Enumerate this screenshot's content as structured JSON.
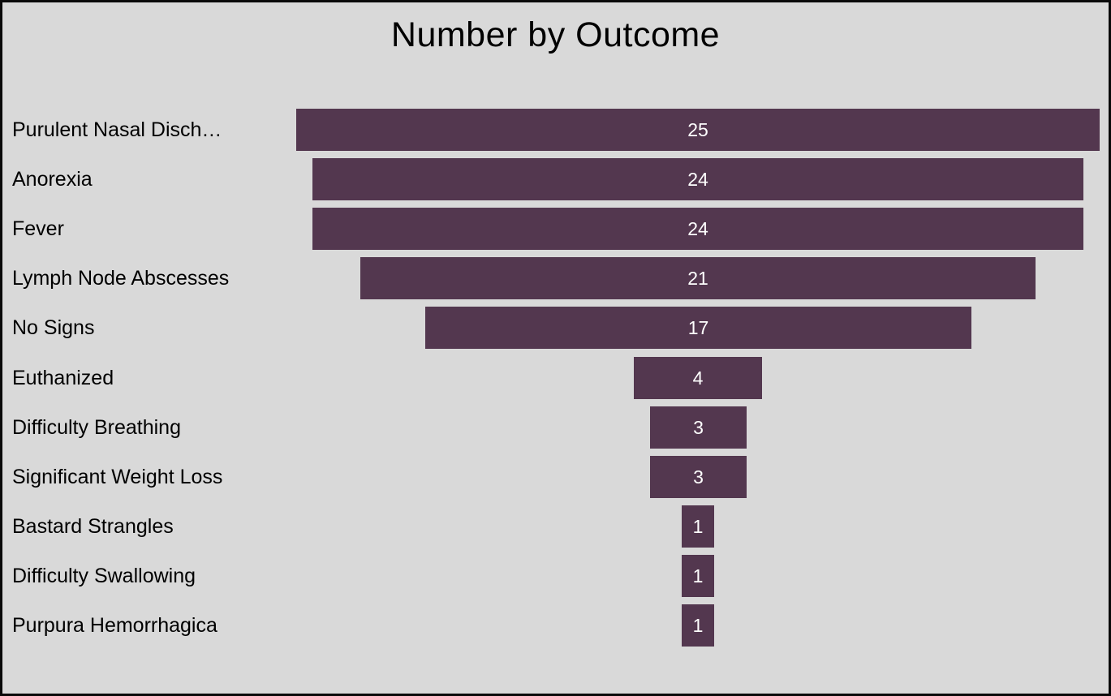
{
  "title": "Number by Outcome",
  "chart_data": {
    "type": "funnel",
    "orientation": "horizontal-centered",
    "title": "Number by Outcome",
    "categories": [
      "Purulent Nasal Disch…",
      "Anorexia",
      "Fever",
      "Lymph Node Abscesses",
      "No Signs",
      "Euthanized",
      "Difficulty Breathing",
      "Significant Weight Loss",
      "Bastard Strangles",
      "Difficulty Swallowing",
      "Purpura Hemorrhagica"
    ],
    "values": [
      25,
      24,
      24,
      21,
      17,
      4,
      3,
      3,
      1,
      1,
      1
    ],
    "value_axis_max": 25,
    "data_labels_position": "inside-center",
    "legend": "none",
    "grid": "off"
  },
  "colors": {
    "bar": "#53374F",
    "background": "#D9D9D9",
    "border": "#0A0A0A",
    "title": "#000000",
    "category_label": "#000000",
    "value_label": "#FFFFFF"
  }
}
